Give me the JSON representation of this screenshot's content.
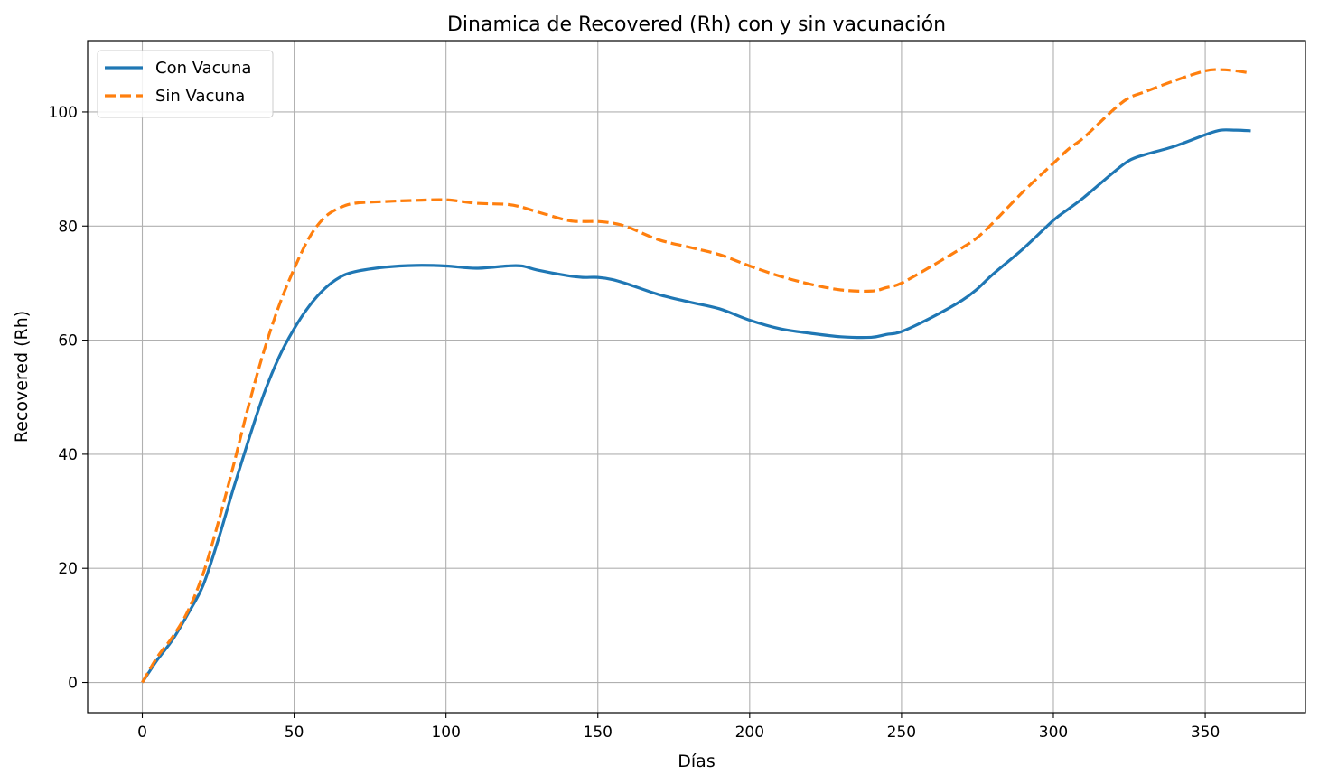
{
  "chart_data": {
    "type": "line",
    "title": "Dinamica de Recovered (Rh) con y sin vacunación",
    "xlabel": "Días",
    "ylabel": "Recovered (Rh)",
    "xlim": [
      -18,
      383
    ],
    "ylim": [
      -5.3,
      112.5
    ],
    "xticks": [
      0,
      50,
      100,
      150,
      200,
      250,
      300,
      350
    ],
    "yticks": [
      0,
      20,
      40,
      60,
      80,
      100
    ],
    "grid": true,
    "legend_position": "top-left",
    "series": [
      {
        "name": "Con Vacuna",
        "color": "#1f77b4",
        "style": "solid",
        "x": [
          0,
          5,
          10,
          15,
          20,
          25,
          30,
          35,
          40,
          45,
          50,
          55,
          60,
          65,
          70,
          80,
          90,
          100,
          110,
          120,
          125,
          130,
          140,
          145,
          150,
          155,
          160,
          170,
          180,
          190,
          200,
          210,
          220,
          230,
          240,
          245,
          250,
          260,
          270,
          275,
          280,
          290,
          300,
          305,
          310,
          320,
          325,
          330,
          340,
          350,
          355,
          360,
          365
        ],
        "y": [
          0,
          4,
          7.5,
          12,
          17,
          25,
          34,
          42.5,
          50.5,
          57,
          62,
          66,
          69,
          71,
          72,
          72.8,
          73.1,
          73,
          72.6,
          73,
          73,
          72.3,
          71.3,
          71,
          71,
          70.6,
          69.8,
          68,
          66.7,
          65.5,
          63.5,
          62,
          61.2,
          60.6,
          60.5,
          61,
          61.5,
          64,
          67,
          69,
          71.5,
          76,
          81,
          83,
          85,
          89.5,
          91.5,
          92.5,
          94,
          96,
          96.8,
          96.8,
          96.7
        ]
      },
      {
        "name": "Sin Vacuna",
        "color": "#ff7f0e",
        "style": "dashed",
        "x": [
          0,
          5,
          10,
          15,
          20,
          25,
          30,
          35,
          40,
          45,
          50,
          55,
          60,
          65,
          70,
          80,
          90,
          100,
          110,
          120,
          125,
          130,
          140,
          145,
          150,
          155,
          160,
          170,
          180,
          190,
          200,
          210,
          220,
          230,
          240,
          245,
          250,
          260,
          270,
          275,
          280,
          290,
          300,
          305,
          310,
          320,
          325,
          330,
          340,
          350,
          355,
          360,
          365
        ],
        "y": [
          0,
          4.5,
          8,
          12.5,
          19,
          28,
          38,
          48.5,
          58,
          66,
          72.5,
          78,
          81.5,
          83.2,
          84,
          84.3,
          84.5,
          84.6,
          84,
          83.8,
          83.3,
          82.5,
          81,
          80.8,
          80.8,
          80.5,
          79.8,
          77.6,
          76.3,
          75,
          73,
          71.2,
          69.8,
          68.8,
          68.6,
          69.2,
          70,
          73,
          76.2,
          78,
          80.5,
          86,
          91,
          93.5,
          95.5,
          100.5,
          102.5,
          103.5,
          105.5,
          107.2,
          107.4,
          107.2,
          106.8
        ]
      }
    ]
  }
}
